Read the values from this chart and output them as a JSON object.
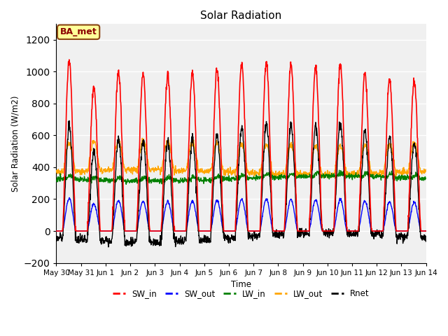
{
  "title": "Solar Radiation",
  "ylabel": "Solar Radiation (W/m2)",
  "xlabel": "Time",
  "ylim": [
    -200,
    1300
  ],
  "yticks": [
    -200,
    0,
    200,
    400,
    600,
    800,
    1000,
    1200
  ],
  "colors": {
    "SW_in": "red",
    "SW_out": "blue",
    "LW_in": "green",
    "LW_out": "orange",
    "Rnet": "black"
  },
  "label_box_text": "BA_met",
  "label_box_facecolor": "#ffff99",
  "label_box_edgecolor": "#8B4513",
  "axes_facecolor": "#f0f0f0",
  "grid_color": "white",
  "tick_labels": [
    "May 30",
    "May 31",
    "Jun 1",
    "Jun 2",
    "Jun 3",
    "Jun 4",
    "Jun 5",
    "Jun 6",
    "Jun 7",
    "Jun 8",
    "Jun 9",
    "Jun 10",
    "Jun 11",
    "Jun 12",
    "Jun 13",
    "Jun 14"
  ],
  "sw_in_peaks": [
    1070,
    900,
    1000,
    990,
    980,
    1000,
    1010,
    1050,
    1050,
    1040,
    1020,
    1040,
    990,
    950,
    940
  ],
  "num_days": 15
}
